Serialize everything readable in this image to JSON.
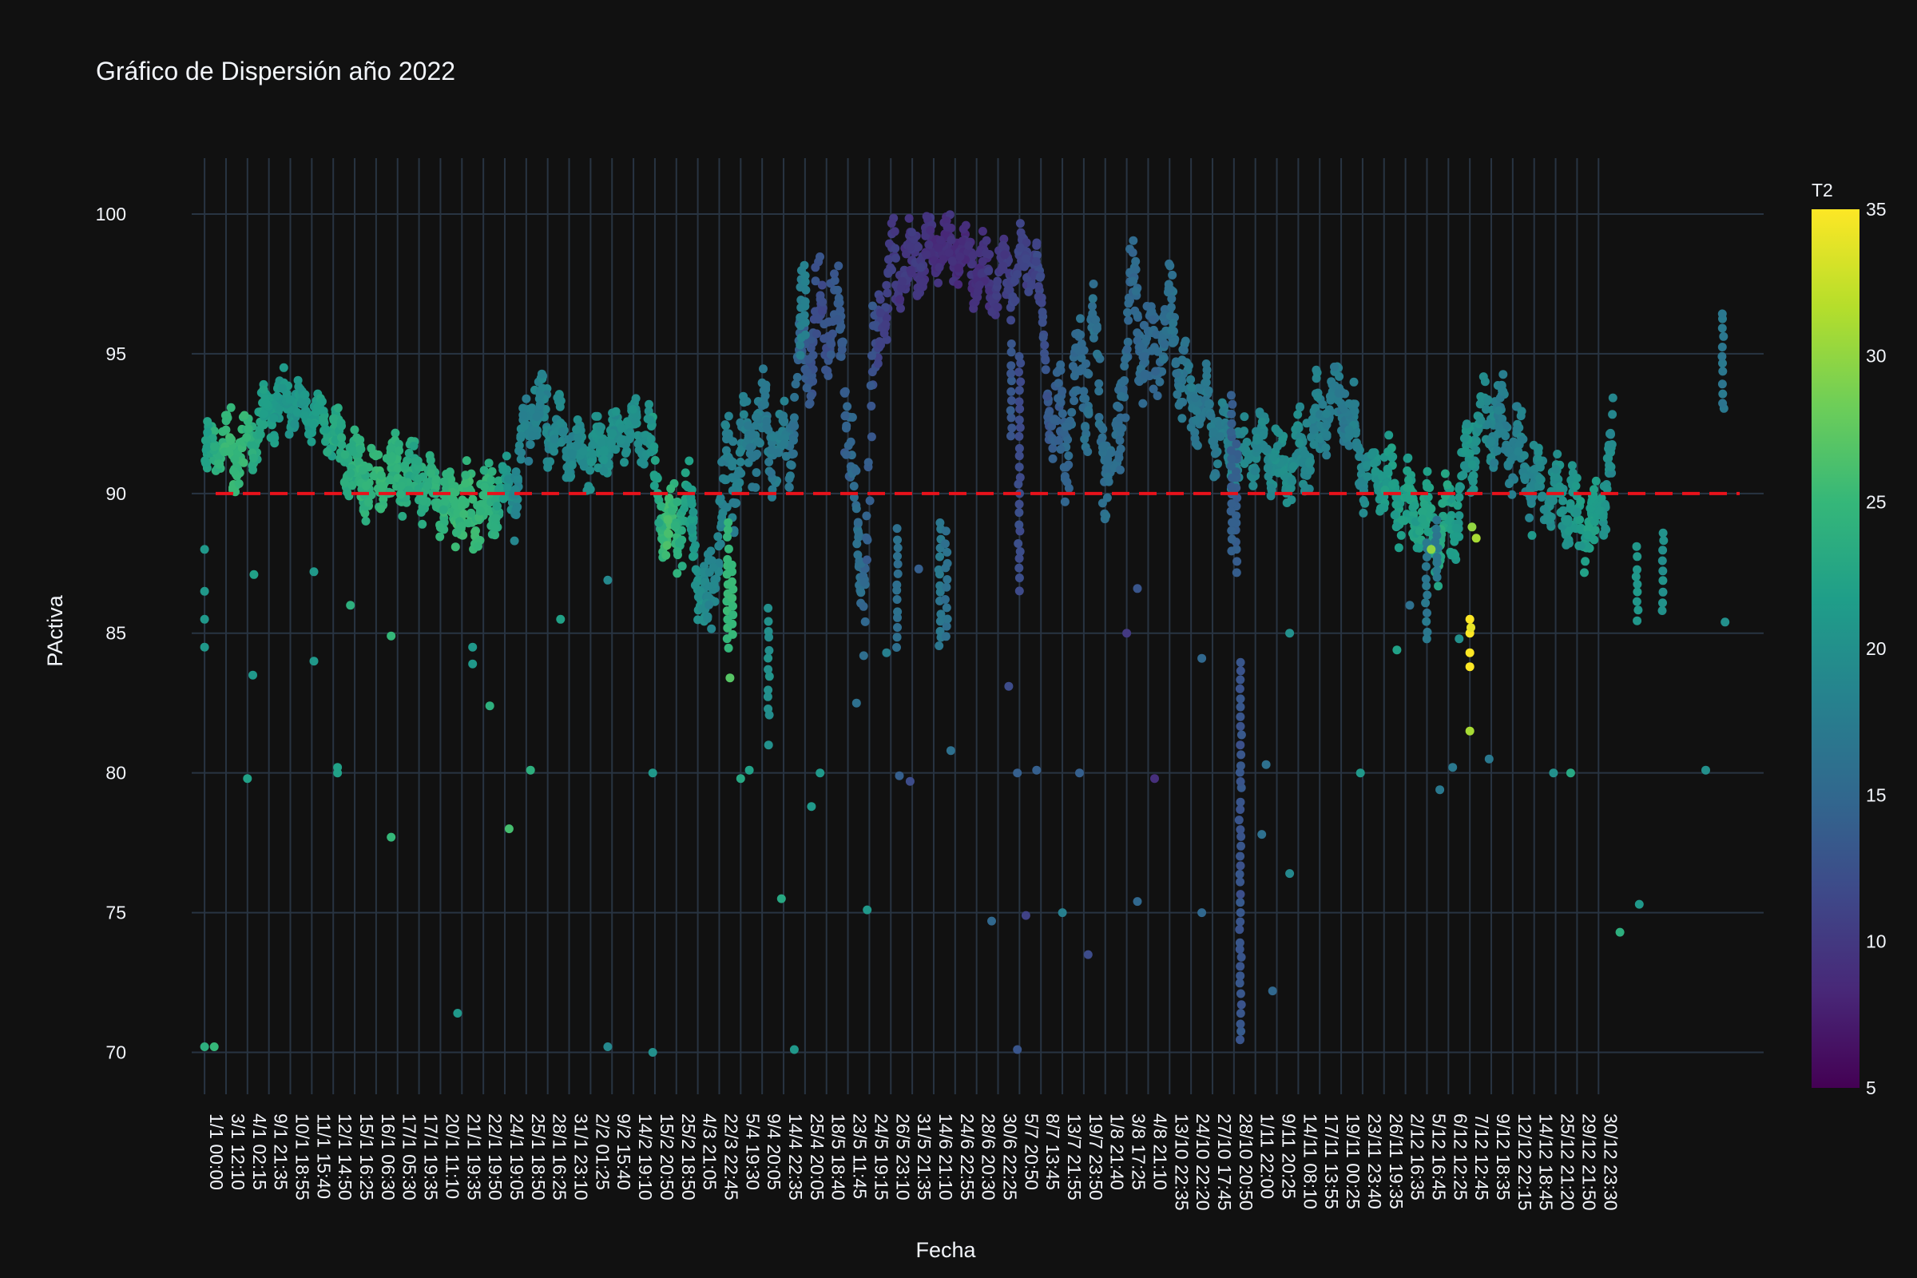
{
  "chart_data": {
    "type": "scatter",
    "title": "Gráfico de Dispersión año 2022",
    "xlabel": "Fecha",
    "ylabel": "PActiva",
    "ylim": [
      68.5,
      102
    ],
    "yticks": [
      70,
      75,
      80,
      85,
      90,
      95,
      100
    ],
    "xlim": [
      -0.6,
      72.7
    ],
    "xticks": [
      "1/1 00:00",
      "3/1 12:10",
      "4/1 02:15",
      "9/1 21:35",
      "10/1 18:55",
      "11/1 15:40",
      "12/1 14:50",
      "15/1 16:25",
      "16/1 06:30",
      "17/1 05:30",
      "17/1 19:35",
      "20/1 11:10",
      "21/1 19:35",
      "22/1 19:50",
      "24/1 19:05",
      "25/1 18:50",
      "28/1 16:25",
      "31/1 23:10",
      "2/2 01:25",
      "9/2 15:40",
      "14/2 19:10",
      "15/2 20:50",
      "25/2 18:50",
      "4/3 21:05",
      "22/3 22:45",
      "5/4 19:30",
      "9/4 20:05",
      "14/4 22:35",
      "25/4 20:05",
      "18/5 18:40",
      "23/5 11:45",
      "24/5 19:15",
      "26/5 23:10",
      "31/5 21:35",
      "14/6 21:10",
      "24/6 22:55",
      "28/6 20:30",
      "30/6 22:25",
      "5/7 20:50",
      "8/7 13:45",
      "13/7 21:55",
      "19/7 23:50",
      "1/8 21:40",
      "3/8 17:25",
      "4/8 21:10",
      "13/10 22:35",
      "24/10 22:20",
      "27/10 17:45",
      "28/10 20:50",
      "1/11 22:00",
      "9/11 20:25",
      "14/11 08:10",
      "17/11 13:55",
      "19/11 00:25",
      "23/11 23:40",
      "26/11 19:35",
      "2/12 16:35",
      "5/12 16:45",
      "6/12 12:25",
      "7/12 12:45",
      "9/12 18:35",
      "12/12 22:15",
      "14/12 18:45",
      "25/12 21:20",
      "29/12 21:50",
      "30/12 23:30"
    ],
    "x_index": [
      0,
      1,
      2,
      3,
      4,
      5,
      6,
      7,
      8,
      9,
      10,
      11,
      12,
      13,
      14,
      15,
      16,
      17,
      18,
      19,
      20,
      21,
      22,
      23,
      24,
      25,
      26,
      27,
      28,
      29,
      30,
      31,
      32,
      33,
      34,
      35,
      36,
      37,
      38,
      39,
      40,
      41,
      42,
      43,
      44,
      45,
      46,
      47,
      48,
      49,
      50,
      51,
      52,
      53,
      54,
      55,
      56,
      57,
      58,
      59,
      60,
      61,
      62,
      63,
      64,
      65
    ],
    "reference_line": {
      "y": 90,
      "color": "#e8121b",
      "style": "dashed"
    },
    "colorbar": {
      "title": "T2",
      "range": [
        5,
        35
      ],
      "ticks": [
        5,
        10,
        15,
        20,
        25,
        30,
        35
      ],
      "colorscale": "Viridis"
    },
    "grid": true,
    "series": [
      {
        "marker": "circle",
        "x_centers": [
          0,
          0.9,
          1.8,
          2.7,
          3.6,
          4.5,
          5.4,
          6.3,
          7.2,
          8.1,
          9,
          9.9,
          10.8,
          11.7,
          12.6,
          13.5,
          14.4,
          15.3,
          16.2,
          17.1,
          18,
          18.9,
          19.8,
          20.7,
          21.6,
          22.5,
          23.4,
          24.3,
          25.2,
          26.1,
          27,
          27.9,
          28.8,
          29.7,
          30.6,
          31.5,
          32.4,
          33.3,
          34.2,
          35.1,
          36,
          36.9,
          37.8,
          38.7,
          39.6,
          40.5,
          41.4,
          42.3,
          43.2,
          44.1,
          45,
          45.9,
          46.8,
          47.7,
          48.6,
          49.5,
          50.4,
          51.3,
          52.2,
          53.1,
          54,
          54.9,
          55.8,
          56.7,
          57.6,
          58.5,
          59.4,
          60.3,
          61.2,
          62.1,
          63,
          63.9,
          64.8,
          65.7
        ],
        "y_centers": [
          91.2,
          91.8,
          91.4,
          92.6,
          93.4,
          93.1,
          92.7,
          91.8,
          90.7,
          90.2,
          90.8,
          90.6,
          89.9,
          89.5,
          89.3,
          89.8,
          90.2,
          93.3,
          92.3,
          91.6,
          91.2,
          91.9,
          92.4,
          92.2,
          88.1,
          90.1,
          85.2,
          90.6,
          91.6,
          92.6,
          91.2,
          94.8,
          96.6,
          95.7,
          86.4,
          97.1,
          97.9,
          98.4,
          98.8,
          98.7,
          98.0,
          97.6,
          97.9,
          98.6,
          91.8,
          93.4,
          95.2,
          90.1,
          97.0,
          94.8,
          96.3,
          93.4,
          92.8,
          91.8,
          91.3,
          91.7,
          90.6,
          91.6,
          92.9,
          93.3,
          91.1,
          90.6,
          89.8,
          89.2,
          88.4,
          89.8,
          92.6,
          92.6,
          91.5,
          90.4,
          89.9,
          89.0,
          88.6,
          91.3
        ],
        "spread": [
          1.1,
          1.2,
          1.1,
          1.0,
          0.9,
          0.8,
          1.0,
          1.3,
          1.4,
          1.3,
          1.2,
          1.1,
          1.2,
          1.3,
          1.3,
          1.2,
          1.4,
          1.4,
          1.2,
          1.1,
          1.1,
          1.0,
          1.0,
          1.1,
          1.5,
          1.6,
          2.0,
          2.2,
          1.5,
          1.4,
          1.7,
          2.2,
          2.0,
          2.0,
          3.0,
          1.7,
          1.3,
          1.2,
          1.1,
          1.1,
          1.2,
          1.2,
          1.3,
          1.2,
          2.5,
          2.3,
          2.2,
          2.0,
          1.9,
          1.8,
          1.7,
          1.5,
          1.5,
          1.3,
          1.2,
          1.3,
          1.5,
          1.6,
          1.3,
          1.3,
          1.2,
          1.3,
          1.4,
          1.4,
          1.5,
          1.4,
          1.4,
          1.5,
          1.4,
          1.2,
          1.4,
          1.4,
          1.6,
          1.4
        ],
        "t2_centers": [
          22,
          25,
          25,
          22,
          21,
          21,
          22,
          23,
          24,
          25,
          24,
          23,
          24,
          25,
          25,
          24,
          19,
          18,
          19,
          19,
          20,
          20,
          20,
          20,
          26,
          22,
          19,
          18,
          18,
          17,
          18,
          14,
          12,
          14,
          16,
          11,
          10,
          10,
          9,
          9,
          9,
          10,
          11,
          11,
          14,
          15,
          16,
          16,
          15,
          15,
          16,
          17,
          17,
          18,
          19,
          19,
          20,
          19,
          18,
          17,
          19,
          21,
          22,
          22,
          23,
          21,
          20,
          18,
          18,
          19,
          20,
          21,
          22,
          19
        ],
        "outliers": [
          {
            "x": 0.0,
            "y": 70.2,
            "t2": 24
          },
          {
            "x": 0.45,
            "y": 70.2,
            "t2": 25
          },
          {
            "x": 0.0,
            "y": 84.5,
            "t2": 21
          },
          {
            "x": 0.0,
            "y": 85.5,
            "t2": 21
          },
          {
            "x": 0.0,
            "y": 86.5,
            "t2": 21
          },
          {
            "x": 0.0,
            "y": 88.0,
            "t2": 21
          },
          {
            "x": 2.0,
            "y": 79.8,
            "t2": 22
          },
          {
            "x": 2.25,
            "y": 83.5,
            "t2": 21
          },
          {
            "x": 2.3,
            "y": 87.1,
            "t2": 22
          },
          {
            "x": 5.1,
            "y": 84.0,
            "t2": 21
          },
          {
            "x": 5.1,
            "y": 87.2,
            "t2": 21
          },
          {
            "x": 6.2,
            "y": 80.2,
            "t2": 22
          },
          {
            "x": 6.2,
            "y": 80.0,
            "t2": 22
          },
          {
            "x": 6.8,
            "y": 86.0,
            "t2": 24
          },
          {
            "x": 8.7,
            "y": 84.9,
            "t2": 25
          },
          {
            "x": 8.7,
            "y": 77.7,
            "t2": 25
          },
          {
            "x": 11.8,
            "y": 71.4,
            "t2": 21
          },
          {
            "x": 12.5,
            "y": 84.5,
            "t2": 21
          },
          {
            "x": 12.5,
            "y": 83.9,
            "t2": 21
          },
          {
            "x": 13.3,
            "y": 82.4,
            "t2": 24
          },
          {
            "x": 14.2,
            "y": 78.0,
            "t2": 26
          },
          {
            "x": 15.2,
            "y": 80.1,
            "t2": 24
          },
          {
            "x": 16.6,
            "y": 85.5,
            "t2": 22
          },
          {
            "x": 18.8,
            "y": 70.2,
            "t2": 19
          },
          {
            "x": 18.8,
            "y": 86.9,
            "t2": 19
          },
          {
            "x": 20.9,
            "y": 70.0,
            "t2": 20
          },
          {
            "x": 20.9,
            "y": 80.0,
            "t2": 21
          },
          {
            "x": 24.5,
            "y": 83.4,
            "t2": 27
          },
          {
            "x": 25.0,
            "y": 79.8,
            "t2": 23
          },
          {
            "x": 25.4,
            "y": 80.1,
            "t2": 22
          },
          {
            "x": 26.3,
            "y": 81.0,
            "t2": 20
          },
          {
            "x": 26.9,
            "y": 75.5,
            "t2": 23
          },
          {
            "x": 27.5,
            "y": 70.1,
            "t2": 21
          },
          {
            "x": 28.3,
            "y": 78.8,
            "t2": 21
          },
          {
            "x": 28.7,
            "y": 80.0,
            "t2": 21
          },
          {
            "x": 30.4,
            "y": 82.5,
            "t2": 16
          },
          {
            "x": 30.9,
            "y": 75.1,
            "t2": 21
          },
          {
            "x": 31.8,
            "y": 84.3,
            "t2": 18
          },
          {
            "x": 32.4,
            "y": 79.9,
            "t2": 14
          },
          {
            "x": 32.9,
            "y": 79.7,
            "t2": 12
          },
          {
            "x": 33.3,
            "y": 87.3,
            "t2": 14
          },
          {
            "x": 34.8,
            "y": 80.8,
            "t2": 16
          },
          {
            "x": 36.7,
            "y": 74.7,
            "t2": 15
          },
          {
            "x": 37.5,
            "y": 83.1,
            "t2": 12
          },
          {
            "x": 37.9,
            "y": 70.1,
            "t2": 13
          },
          {
            "x": 37.9,
            "y": 80.0,
            "t2": 14
          },
          {
            "x": 38.3,
            "y": 74.9,
            "t2": 11
          },
          {
            "x": 38.8,
            "y": 80.1,
            "t2": 14
          },
          {
            "x": 40.0,
            "y": 75.0,
            "t2": 18
          },
          {
            "x": 40.8,
            "y": 80.0,
            "t2": 14
          },
          {
            "x": 41.2,
            "y": 73.5,
            "t2": 12
          },
          {
            "x": 43.0,
            "y": 85.0,
            "t2": 10
          },
          {
            "x": 43.5,
            "y": 86.6,
            "t2": 13
          },
          {
            "x": 43.5,
            "y": 75.4,
            "t2": 15
          },
          {
            "x": 44.3,
            "y": 79.8,
            "t2": 9
          },
          {
            "x": 46.5,
            "y": 84.1,
            "t2": 15
          },
          {
            "x": 46.5,
            "y": 75.0,
            "t2": 15
          },
          {
            "x": 49.3,
            "y": 77.8,
            "t2": 16
          },
          {
            "x": 49.5,
            "y": 80.3,
            "t2": 16
          },
          {
            "x": 49.8,
            "y": 72.2,
            "t2": 15
          },
          {
            "x": 50.6,
            "y": 76.4,
            "t2": 19
          },
          {
            "x": 50.6,
            "y": 85.0,
            "t2": 20
          },
          {
            "x": 53.9,
            "y": 80.0,
            "t2": 21
          },
          {
            "x": 55.6,
            "y": 84.4,
            "t2": 22
          },
          {
            "x": 56.2,
            "y": 86.0,
            "t2": 16
          },
          {
            "x": 57.2,
            "y": 88.0,
            "t2": 30
          },
          {
            "x": 57.6,
            "y": 79.4,
            "t2": 17
          },
          {
            "x": 58.2,
            "y": 80.2,
            "t2": 17
          },
          {
            "x": 58.5,
            "y": 84.8,
            "t2": 20
          },
          {
            "x": 59.9,
            "y": 80.5,
            "t2": 17
          },
          {
            "x": 61.9,
            "y": 88.5,
            "t2": 21
          },
          {
            "x": 62.9,
            "y": 80.0,
            "t2": 20
          },
          {
            "x": 63.7,
            "y": 80.0,
            "t2": 23
          },
          {
            "x": 66.0,
            "y": 74.3,
            "t2": 24
          },
          {
            "x": 66.9,
            "y": 75.3,
            "t2": 21
          },
          {
            "x": 70.0,
            "y": 80.1,
            "t2": 20
          },
          {
            "x": 70.9,
            "y": 85.4,
            "t2": 20
          }
        ],
        "vertical_streaks": [
          {
            "x": 32.3,
            "y_from": 84.5,
            "y_to": 88.7,
            "t2": 16
          },
          {
            "x": 34.3,
            "y_from": 84.5,
            "y_to": 89.0,
            "t2": 17
          },
          {
            "x": 34.6,
            "y_from": 84.9,
            "y_to": 88.6,
            "t2": 16
          },
          {
            "x": 38.0,
            "y_from": 86.6,
            "y_to": 95.0,
            "t2": 12
          },
          {
            "x": 48.3,
            "y_from": 70.4,
            "y_to": 84.0,
            "t2": 13
          },
          {
            "x": 48.1,
            "y_from": 87.3,
            "y_to": 91.8,
            "t2": 14
          },
          {
            "x": 24.4,
            "y_from": 84.5,
            "y_to": 89.0,
            "t2": 25
          },
          {
            "x": 24.6,
            "y_from": 85.0,
            "y_to": 87.5,
            "t2": 25
          },
          {
            "x": 26.3,
            "y_from": 82.0,
            "y_to": 85.8,
            "t2": 20
          },
          {
            "x": 27.8,
            "y_from": 95.0,
            "y_to": 98.0,
            "t2": 18
          },
          {
            "x": 28.0,
            "y_from": 95.8,
            "y_to": 98.1,
            "t2": 18
          },
          {
            "x": 37.6,
            "y_from": 92.0,
            "y_to": 95.4,
            "t2": 13
          },
          {
            "x": 47.9,
            "y_from": 88.0,
            "y_to": 93.5,
            "t2": 14
          },
          {
            "x": 57.0,
            "y_from": 84.8,
            "y_to": 88.3,
            "t2": 17
          },
          {
            "x": 57.45,
            "y_from": 87.0,
            "y_to": 89.0,
            "t2": 17
          },
          {
            "x": 68.0,
            "y_from": 85.8,
            "y_to": 88.6,
            "t2": 20
          },
          {
            "x": 66.8,
            "y_from": 85.5,
            "y_to": 88.0,
            "t2": 21
          },
          {
            "x": 70.8,
            "y_from": 93.0,
            "y_to": 96.5,
            "t2": 17
          }
        ],
        "highlight_points": [
          {
            "x": 59.0,
            "y": 85.5,
            "t2": 35
          },
          {
            "x": 59.0,
            "y": 85.0,
            "t2": 35
          },
          {
            "x": 59.0,
            "y": 84.3,
            "t2": 35
          },
          {
            "x": 59.0,
            "y": 83.8,
            "t2": 35
          },
          {
            "x": 59.05,
            "y": 85.2,
            "t2": 34
          },
          {
            "x": 59.0,
            "y": 81.5,
            "t2": 31
          },
          {
            "x": 59.3,
            "y": 88.4,
            "t2": 31
          },
          {
            "x": 59.1,
            "y": 88.8,
            "t2": 30
          }
        ]
      }
    ]
  }
}
